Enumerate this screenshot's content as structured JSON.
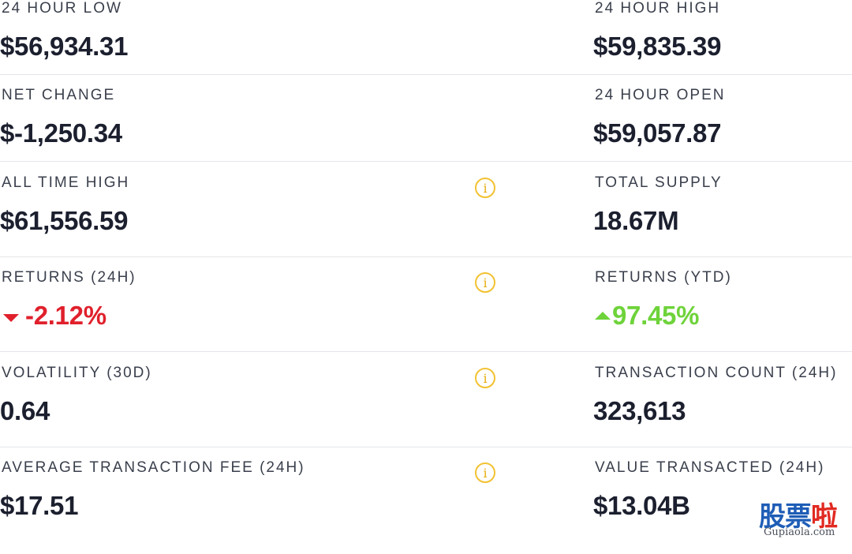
{
  "stats": {
    "rows": [
      {
        "left": {
          "label": "24 HOUR LOW",
          "value": "$56,934.31"
        },
        "right": {
          "label": "24 HOUR HIGH",
          "value": "$59,835.39"
        }
      },
      {
        "left": {
          "label": "NET CHANGE",
          "value": "$-1,250.34"
        },
        "right": {
          "label": "24 HOUR OPEN",
          "value": "$59,057.87"
        }
      },
      {
        "left": {
          "label": "ALL TIME HIGH",
          "value": "$61,556.59",
          "info": "i"
        },
        "right": {
          "label": "TOTAL SUPPLY",
          "value": "18.67M"
        }
      },
      {
        "left": {
          "label": "RETURNS (24H)",
          "value": "-2.12%",
          "info": "i",
          "trend": "down"
        },
        "right": {
          "label": "RETURNS (YTD)",
          "value": "97.45%",
          "trend": "up"
        }
      },
      {
        "left": {
          "label": "VOLATILITY (30D)",
          "value": "0.64",
          "info": "i"
        },
        "right": {
          "label": "TRANSACTION COUNT (24H)",
          "value": "323,613"
        }
      },
      {
        "left": {
          "label": "AVERAGE TRANSACTION FEE (24H)",
          "value": "$17.51",
          "info": "i"
        },
        "right": {
          "label": "VALUE TRANSACTED (24H)",
          "value": "$13.04B"
        }
      }
    ]
  },
  "watermark": {
    "chars": [
      "股",
      "票",
      "啦"
    ],
    "site": "Gupiaola.com"
  },
  "colors": {
    "negative": "#e0202c",
    "positive": "#6ed33a",
    "info_icon": "#f2c232",
    "divider": "#e4e6ea",
    "text": "#1b1f2e"
  }
}
